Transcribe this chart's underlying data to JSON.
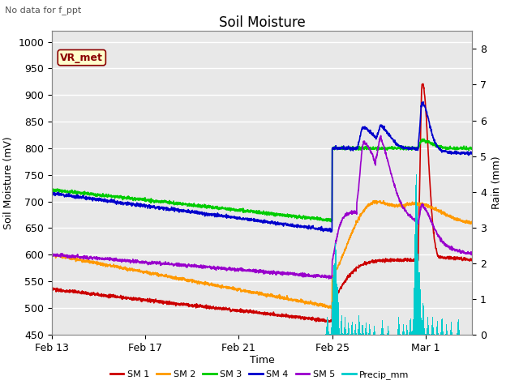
{
  "title": "Soil Moisture",
  "top_left_text": "No data for f_ppt",
  "annotation_box": "VR_met",
  "xlabel": "Time",
  "ylabel_left": "Soil Moisture (mV)",
  "ylabel_right": "Rain (mm)",
  "ylim_left": [
    450,
    1020
  ],
  "ylim_right": [
    0.0,
    8.5
  ],
  "yticks_left": [
    450,
    500,
    550,
    600,
    650,
    700,
    750,
    800,
    850,
    900,
    950,
    1000
  ],
  "yticks_right": [
    0.0,
    1.0,
    2.0,
    3.0,
    4.0,
    5.0,
    6.0,
    7.0,
    8.0
  ],
  "xtick_labels": [
    "Feb 13",
    "Feb 17",
    "Feb 21",
    "Feb 25",
    "Mar 1"
  ],
  "xtick_positions": [
    0,
    4,
    8,
    12,
    16
  ],
  "xlim": [
    0,
    18
  ],
  "colors": {
    "SM1": "#cc0000",
    "SM2": "#ff9900",
    "SM3": "#00cc00",
    "SM4": "#0000cc",
    "SM5": "#9900cc",
    "Precip": "#00cccc"
  },
  "legend_labels": [
    "SM 1",
    "SM 2",
    "SM 3",
    "SM 4",
    "SM 5",
    "Precip_mm"
  ],
  "background_color": "#e8e8e8",
  "grid_color": "#ffffff",
  "title_fontsize": 12,
  "axis_fontsize": 9,
  "tick_fontsize": 9,
  "linewidth": 1.2
}
